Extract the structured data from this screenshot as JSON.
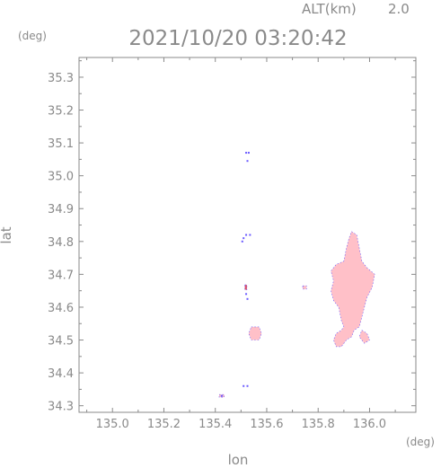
{
  "header": {
    "altitude_label": "ALT(km)",
    "altitude_value": "2.0",
    "timestamp": "2021/10/20 03:20:42",
    "y_unit": "(deg)",
    "x_unit": "(deg)"
  },
  "chart_data": {
    "type": "heatmap",
    "title": "2021/10/20 03:20:42",
    "xlabel": "lon",
    "ylabel": "lat",
    "xlim": [
      134.87,
      136.18
    ],
    "ylim": [
      34.28,
      35.36
    ],
    "x_ticks": [
      135.0,
      135.2,
      135.4,
      135.6,
      135.8,
      136.0
    ],
    "x_tick_labels": [
      "135.0",
      "135.2",
      "135.4",
      "135.6",
      "135.8",
      "136.0"
    ],
    "y_ticks": [
      34.3,
      34.4,
      34.5,
      34.6,
      34.7,
      34.8,
      34.9,
      35.0,
      35.1,
      35.2,
      35.3
    ],
    "y_tick_labels": [
      "34.3",
      "34.4",
      "34.5",
      "34.6",
      "34.7",
      "34.8",
      "34.9",
      "35.0",
      "35.1",
      "35.2",
      "35.3"
    ],
    "grid": false,
    "colors": {
      "echo_fill": "#ffc0c8",
      "echo_edge": "#6a5aff",
      "echo_red": "#e05060",
      "axis": "#8a8a8a"
    },
    "echo_regions": [
      {
        "name": "east-cell",
        "polygon": [
          [
            135.93,
            34.83
          ],
          [
            135.95,
            34.82
          ],
          [
            135.96,
            34.78
          ],
          [
            135.97,
            34.74
          ],
          [
            135.99,
            34.72
          ],
          [
            136.02,
            34.7
          ],
          [
            136.01,
            34.66
          ],
          [
            135.99,
            34.63
          ],
          [
            135.98,
            34.6
          ],
          [
            135.97,
            34.57
          ],
          [
            135.96,
            34.54
          ],
          [
            135.94,
            34.53
          ],
          [
            135.93,
            34.51
          ],
          [
            135.91,
            34.5
          ],
          [
            135.89,
            34.48
          ],
          [
            135.87,
            34.48
          ],
          [
            135.86,
            34.5
          ],
          [
            135.87,
            34.52
          ],
          [
            135.89,
            34.53
          ],
          [
            135.9,
            34.54
          ],
          [
            135.89,
            34.56
          ],
          [
            135.88,
            34.6
          ],
          [
            135.86,
            34.62
          ],
          [
            135.85,
            34.65
          ],
          [
            135.86,
            34.68
          ],
          [
            135.85,
            34.71
          ],
          [
            135.87,
            34.73
          ],
          [
            135.9,
            34.74
          ],
          [
            135.91,
            34.78
          ],
          [
            135.92,
            34.81
          ]
        ]
      },
      {
        "name": "east-cell-tail",
        "polygon": [
          [
            135.97,
            34.53
          ],
          [
            135.99,
            34.52
          ],
          [
            136.0,
            34.5
          ],
          [
            135.98,
            34.49
          ],
          [
            135.96,
            34.51
          ]
        ]
      },
      {
        "name": "central-cell",
        "polygon": [
          [
            135.54,
            34.54
          ],
          [
            135.57,
            34.54
          ],
          [
            135.58,
            34.52
          ],
          [
            135.57,
            34.5
          ],
          [
            135.54,
            34.5
          ],
          [
            135.53,
            34.52
          ]
        ]
      },
      {
        "name": "speck-135.75",
        "polygon": [
          [
            135.74,
            34.665
          ],
          [
            135.755,
            34.665
          ],
          [
            135.755,
            34.655
          ],
          [
            135.74,
            34.655
          ]
        ]
      },
      {
        "name": "speck-135.52-34.66",
        "polygon": [
          [
            135.515,
            34.668
          ],
          [
            135.523,
            34.668
          ],
          [
            135.523,
            34.653
          ],
          [
            135.515,
            34.653
          ]
        ]
      },
      {
        "name": "speck-135.43",
        "polygon": [
          [
            135.415,
            34.334
          ],
          [
            135.435,
            34.334
          ],
          [
            135.435,
            34.326
          ],
          [
            135.415,
            34.326
          ]
        ]
      }
    ],
    "edge_specks": [
      [
        135.52,
        35.07
      ],
      [
        135.53,
        35.07
      ],
      [
        135.525,
        35.045
      ],
      [
        135.51,
        34.81
      ],
      [
        135.52,
        34.82
      ],
      [
        135.535,
        34.82
      ],
      [
        135.505,
        34.8
      ],
      [
        135.52,
        34.64
      ],
      [
        135.525,
        34.625
      ],
      [
        135.51,
        34.36
      ],
      [
        135.525,
        34.36
      ],
      [
        135.425,
        34.33
      ]
    ]
  }
}
